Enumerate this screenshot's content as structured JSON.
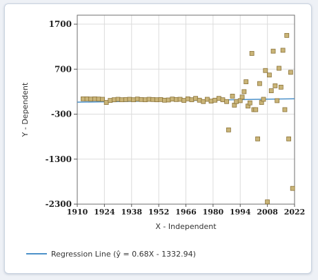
{
  "chart_data": {
    "type": "scatter",
    "xlabel": "X - Independent",
    "ylabel": "Y - Dependent",
    "xlim": [
      1910,
      2022
    ],
    "ylim": [
      -2300,
      1900
    ],
    "x_ticks": [
      1910,
      1924,
      1938,
      1952,
      1966,
      1980,
      1994,
      2008,
      2022
    ],
    "y_ticks": [
      1700,
      700,
      -300,
      -1300,
      -2300
    ],
    "grid": true,
    "legend_position": "bottom-left",
    "marker_color": "#c9b478",
    "marker_edge": "#8a7238",
    "line_color": "#4a90c9",
    "series": [
      {
        "name": "",
        "points": [
          [
            1913,
            40
          ],
          [
            1915,
            40
          ],
          [
            1917,
            35
          ],
          [
            1919,
            40
          ],
          [
            1921,
            35
          ],
          [
            1923,
            30
          ],
          [
            1925,
            -40
          ],
          [
            1927,
            5
          ],
          [
            1929,
            20
          ],
          [
            1931,
            30
          ],
          [
            1933,
            20
          ],
          [
            1935,
            25
          ],
          [
            1937,
            30
          ],
          [
            1939,
            20
          ],
          [
            1941,
            35
          ],
          [
            1943,
            25
          ],
          [
            1945,
            20
          ],
          [
            1947,
            30
          ],
          [
            1949,
            25
          ],
          [
            1951,
            20
          ],
          [
            1953,
            25
          ],
          [
            1955,
            10
          ],
          [
            1957,
            15
          ],
          [
            1959,
            35
          ],
          [
            1961,
            25
          ],
          [
            1963,
            30
          ],
          [
            1965,
            5
          ],
          [
            1967,
            40
          ],
          [
            1969,
            20
          ],
          [
            1971,
            50
          ],
          [
            1973,
            10
          ],
          [
            1975,
            -20
          ],
          [
            1977,
            30
          ],
          [
            1979,
            -10
          ],
          [
            1981,
            10
          ],
          [
            1983,
            50
          ],
          [
            1985,
            20
          ],
          [
            1987,
            -20
          ],
          [
            1988,
            -650
          ],
          [
            1990,
            100
          ],
          [
            1991,
            -100
          ],
          [
            1992,
            -20
          ],
          [
            1994,
            0
          ],
          [
            1995,
            80
          ],
          [
            1996,
            200
          ],
          [
            1997,
            420
          ],
          [
            1998,
            -120
          ],
          [
            1999,
            -50
          ],
          [
            2000,
            1050
          ],
          [
            2001,
            -200
          ],
          [
            2002,
            -200
          ],
          [
            2003,
            -850
          ],
          [
            2004,
            380
          ],
          [
            2005,
            -40
          ],
          [
            2006,
            30
          ],
          [
            2007,
            670
          ],
          [
            2008,
            -2250
          ],
          [
            2009,
            570
          ],
          [
            2010,
            220
          ],
          [
            2011,
            1100
          ],
          [
            2012,
            330
          ],
          [
            2013,
            0
          ],
          [
            2014,
            720
          ],
          [
            2015,
            300
          ],
          [
            2016,
            1120
          ],
          [
            2017,
            -200
          ],
          [
            2018,
            1450
          ],
          [
            2019,
            -850
          ],
          [
            2020,
            630
          ],
          [
            2021,
            -1950
          ]
        ]
      }
    ],
    "regression": {
      "label": "Regression Line (ŷ = 0.68X - 1332.94)",
      "slope": 0.68,
      "intercept": -1332.94
    }
  }
}
